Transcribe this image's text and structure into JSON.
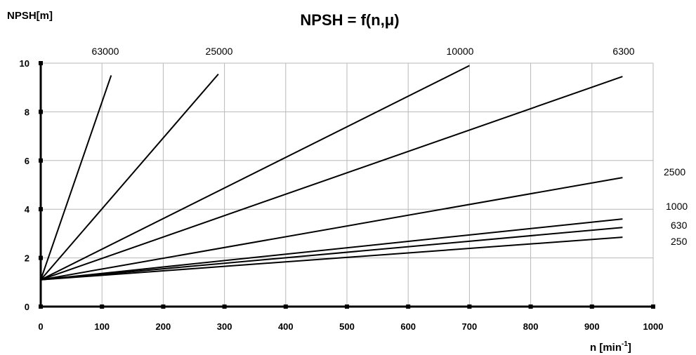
{
  "chart_data": {
    "type": "line",
    "title": "NPSH = f(n,μ)",
    "ylabel": "NPSH[m]",
    "xlabel_main": "n [min",
    "xlabel_sup": "-1",
    "xlabel_end": "]",
    "xlim": [
      0,
      1000
    ],
    "ylim": [
      0,
      10
    ],
    "x_ticks": [
      "0",
      "100",
      "200",
      "300",
      "400",
      "500",
      "600",
      "700",
      "800",
      "900",
      "1000"
    ],
    "y_ticks": [
      "0",
      "2",
      "4",
      "6",
      "8",
      "10"
    ],
    "grid": true,
    "series": [
      {
        "name": "63000",
        "points": [
          [
            0,
            1.1
          ],
          [
            115,
            9.5
          ]
        ]
      },
      {
        "name": "25000",
        "points": [
          [
            0,
            1.1
          ],
          [
            290,
            9.55
          ]
        ]
      },
      {
        "name": "10000",
        "points": [
          [
            0,
            1.1
          ],
          [
            700,
            9.9
          ]
        ]
      },
      {
        "name": "6300",
        "points": [
          [
            0,
            1.1
          ],
          [
            950,
            9.45
          ]
        ]
      },
      {
        "name": "2500",
        "points": [
          [
            0,
            1.1
          ],
          [
            950,
            5.3
          ]
        ]
      },
      {
        "name": "1000",
        "points": [
          [
            0,
            1.1
          ],
          [
            950,
            3.6
          ]
        ]
      },
      {
        "name": "630",
        "points": [
          [
            0,
            1.1
          ],
          [
            950,
            3.25
          ]
        ]
      },
      {
        "name": "250",
        "points": [
          [
            0,
            1.1
          ],
          [
            950,
            2.85
          ]
        ]
      }
    ]
  }
}
